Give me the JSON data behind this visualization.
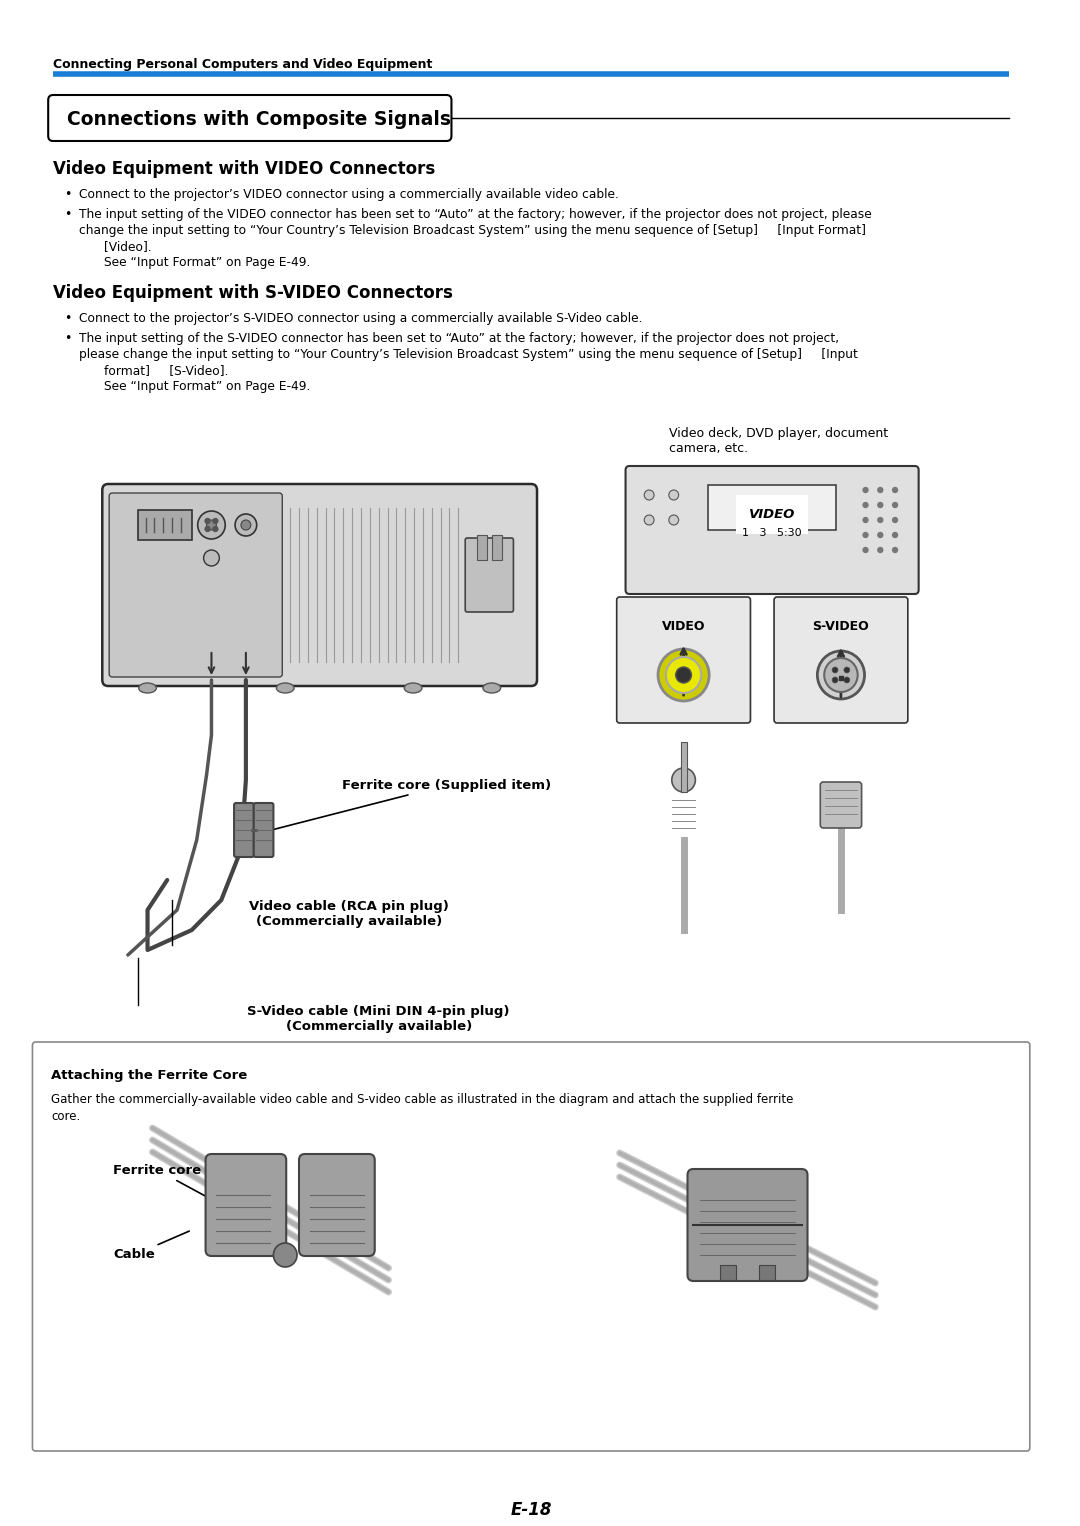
{
  "page_bg": "#ffffff",
  "page_width": 10.8,
  "page_height": 15.26,
  "top_label": "Connecting Personal Computers and Video Equipment",
  "blue_line_color": "#1a7fd4",
  "section_title": "Connections with Composite Signals",
  "sub1_title": "Video Equipment with VIDEO Connectors",
  "sub1_bullet1": "Connect to the projector’s VIDEO connector using a commercially available video cable.",
  "sub1_bullet2a": "The input setting of the VIDEO connector has been set to “Auto” at the factory; however, if the projector does not project, please",
  "sub1_bullet2b": "change the input setting to “Your Country’s Television Broadcast System” using the menu sequence of [Setup]     [Input Format]",
  "sub1_bullet2c": "[Video].",
  "sub1_see": "See “Input Format” on Page E-49.",
  "sub2_title": "Video Equipment with S-VIDEO Connectors",
  "sub2_bullet1": "Connect to the projector’s S-VIDEO connector using a commercially available S-Video cable.",
  "sub2_bullet2a": "The input setting of the S-VIDEO connector has been set to “Auto” at the factory; however, if the projector does not project,",
  "sub2_bullet2b": "please change the input setting to “Your Country’s Television Broadcast System” using the menu sequence of [Setup]     [Input",
  "sub2_bullet2c": "format]     [S-Video].",
  "sub2_see": "See “Input Format” on Page E-49.",
  "diagram_caption": "Video deck, DVD player, document\ncamera, etc.",
  "label_ferrite": "Ferrite core (Supplied item)",
  "label_video_cable": "Video cable (RCA pin plug)\n(Commercially available)",
  "label_svideo_cable": "S-Video cable (Mini DIN 4-pin plug)\n(Commercially available)",
  "box_title": "Attaching the Ferrite Core",
  "box_text1": "Gather the commercially-available video cable and S-video cable as illustrated in the diagram and attach the supplied ferrite",
  "box_text2": "core.",
  "label_ferrite_core": "Ferrite core",
  "label_cable": "Cable",
  "page_number": "E-18",
  "text_color": "#000000"
}
